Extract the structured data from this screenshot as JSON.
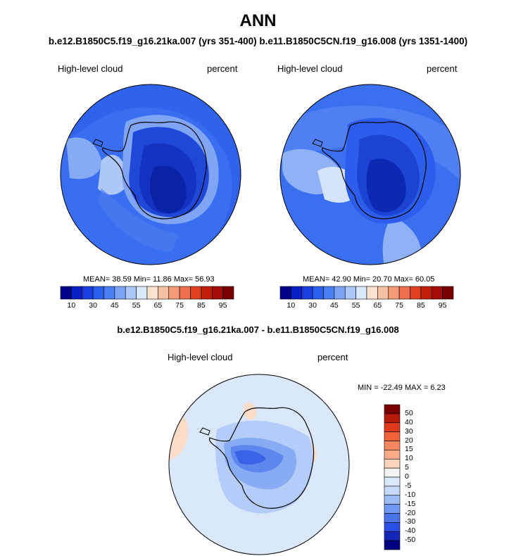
{
  "title": "ANN",
  "subtitle": "b.e12.B1850C5.f19_g16.21ka.007 (yrs 351-400) b.e11.B1850C5CN.f19_g16.008 (yrs 1351-1400)",
  "panels": [
    {
      "variable": "High-level cloud",
      "units": "percent",
      "stats": "MEAN=  38.59  Min=  11.86  Max=  56.93"
    },
    {
      "variable": "High-level cloud",
      "units": "percent",
      "stats": "MEAN=  42.90  Min=  20.70  Max=  60.05"
    }
  ],
  "colorbar_top": {
    "tick_labels": [
      "10",
      "30",
      "45",
      "55",
      "65",
      "75",
      "85",
      "95"
    ],
    "colors": [
      "#00008b",
      "#0a1fc4",
      "#1a3fe0",
      "#2b5ff0",
      "#4a7ef3",
      "#7aa2f5",
      "#adc8f7",
      "#dce9fb",
      "#fde3d2",
      "#f9c1a4",
      "#f59a77",
      "#f0704d",
      "#e04020",
      "#c21f0b",
      "#a40d06",
      "#7a0000"
    ]
  },
  "difference": {
    "title": "b.e12.B1850C5.f19_g16.21ka.007 - b.e11.B1850C5CN.f19_g16.008",
    "variable": "High-level cloud",
    "units": "percent",
    "stats": "MIN = -22.49 MAX =   6.23",
    "colorbar": {
      "tick_labels": [
        "50",
        "40",
        "30",
        "20",
        "15",
        "10",
        "5",
        "0",
        "-5",
        "-10",
        "-15",
        "-20",
        "-30",
        "-40",
        "-50"
      ],
      "colors": [
        "#7a0000",
        "#b51a0a",
        "#e03a1c",
        "#f2623a",
        "#f6875f",
        "#f9ab88",
        "#fcd3bb",
        "#f4f4f4",
        "#c7dafa",
        "#9cbcf6",
        "#7299f1",
        "#4a74ec",
        "#2a4fe4",
        "#1428b8",
        "#000080"
      ]
    }
  }
}
